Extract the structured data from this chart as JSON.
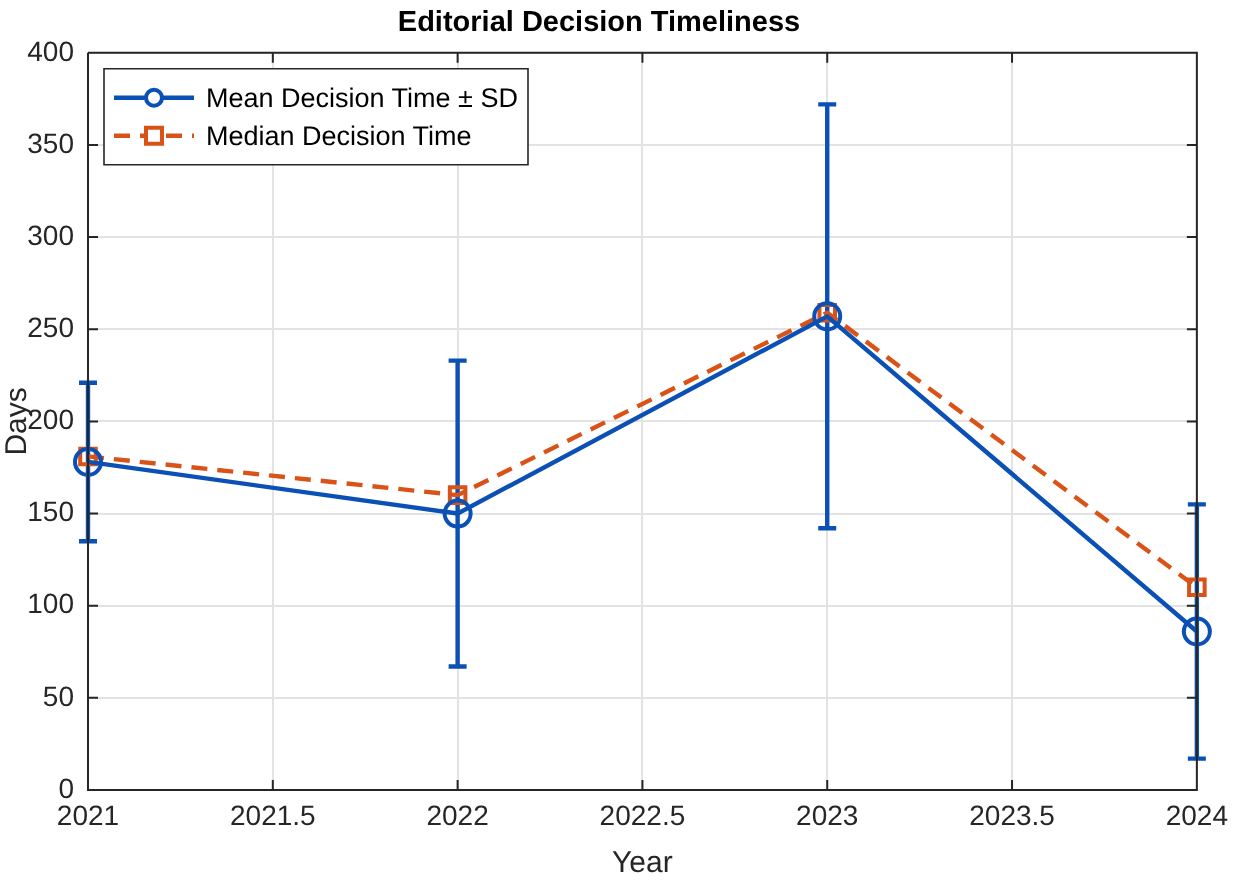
{
  "chart_data": {
    "type": "line",
    "title": "Editorial Decision Timeliness",
    "xlabel": "Year",
    "ylabel": "Days",
    "x": [
      2021,
      2022,
      2023,
      2024
    ],
    "series": [
      {
        "name": "Mean Decision Time ± SD",
        "color": "#0b50b4",
        "values": [
          178,
          150,
          257,
          86
        ],
        "errors": [
          43,
          83,
          115,
          69
        ],
        "marker": "circle",
        "line_style": "solid"
      },
      {
        "name": "Median Decision Time",
        "color": "#d95319",
        "values": [
          181,
          160,
          259,
          110
        ],
        "marker": "square",
        "line_style": "dashed"
      }
    ],
    "xlim": [
      2021,
      2024
    ],
    "xticks": [
      2021,
      2021.5,
      2022,
      2022.5,
      2023,
      2023.5,
      2024
    ],
    "ylim": [
      0,
      400
    ],
    "yticks": [
      0,
      50,
      100,
      150,
      200,
      250,
      300,
      350,
      400
    ],
    "grid": true,
    "legend": "top left"
  }
}
